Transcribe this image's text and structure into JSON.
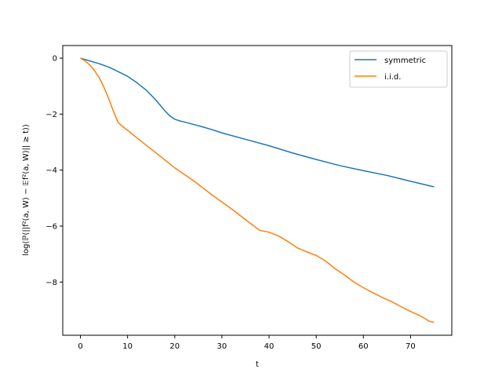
{
  "chart_data": {
    "type": "line",
    "xlabel": "t",
    "ylabel": "log(ℙ(||f²(a, W) − 𝔼f²(a, W)|| ≥ t))",
    "xlim": [
      -3.75,
      78.75
    ],
    "ylim": [
      -9.9,
      0.45
    ],
    "xticks": [
      0,
      10,
      20,
      30,
      40,
      50,
      60,
      70
    ],
    "yticks": [
      0,
      -2,
      -4,
      -6,
      -8
    ],
    "xtick_labels": [
      "0",
      "10",
      "20",
      "30",
      "40",
      "50",
      "60",
      "70"
    ],
    "ytick_labels": [
      "0",
      "−2",
      "−4",
      "−6",
      "−8"
    ],
    "grid": false,
    "legend_position": "top-right",
    "series": [
      {
        "name": "symmetric",
        "color": "#1f77b4",
        "x": [
          0,
          2,
          4,
          6,
          8,
          10,
          12,
          14,
          16,
          18,
          19,
          20,
          21,
          22,
          24,
          26,
          28,
          30,
          35,
          40,
          45,
          50,
          55,
          60,
          65,
          70,
          75
        ],
        "y": [
          0,
          -0.1,
          -0.2,
          -0.32,
          -0.48,
          -0.65,
          -0.88,
          -1.15,
          -1.5,
          -1.9,
          -2.07,
          -2.18,
          -2.24,
          -2.28,
          -2.37,
          -2.46,
          -2.56,
          -2.67,
          -2.9,
          -3.13,
          -3.39,
          -3.62,
          -3.84,
          -4.02,
          -4.19,
          -4.4,
          -4.6
        ]
      },
      {
        "name": "i.i.d.",
        "color": "#ff7f0e",
        "x": [
          0,
          1,
          2,
          3,
          4,
          5,
          6,
          7,
          8,
          9,
          10,
          12,
          15,
          18,
          20,
          24,
          28,
          32,
          36,
          38,
          40,
          42,
          44,
          46,
          48,
          50,
          52,
          54,
          56,
          58,
          60,
          62,
          64,
          66,
          68,
          70,
          72,
          73,
          74,
          75
        ],
        "y": [
          0,
          -0.1,
          -0.25,
          -0.45,
          -0.7,
          -1.05,
          -1.45,
          -1.9,
          -2.3,
          -2.45,
          -2.58,
          -2.85,
          -3.25,
          -3.65,
          -3.92,
          -4.38,
          -4.9,
          -5.38,
          -5.9,
          -6.15,
          -6.22,
          -6.35,
          -6.55,
          -6.78,
          -6.92,
          -7.05,
          -7.25,
          -7.52,
          -7.75,
          -8.0,
          -8.2,
          -8.38,
          -8.55,
          -8.7,
          -8.88,
          -9.05,
          -9.2,
          -9.3,
          -9.4,
          -9.44
        ]
      }
    ]
  }
}
